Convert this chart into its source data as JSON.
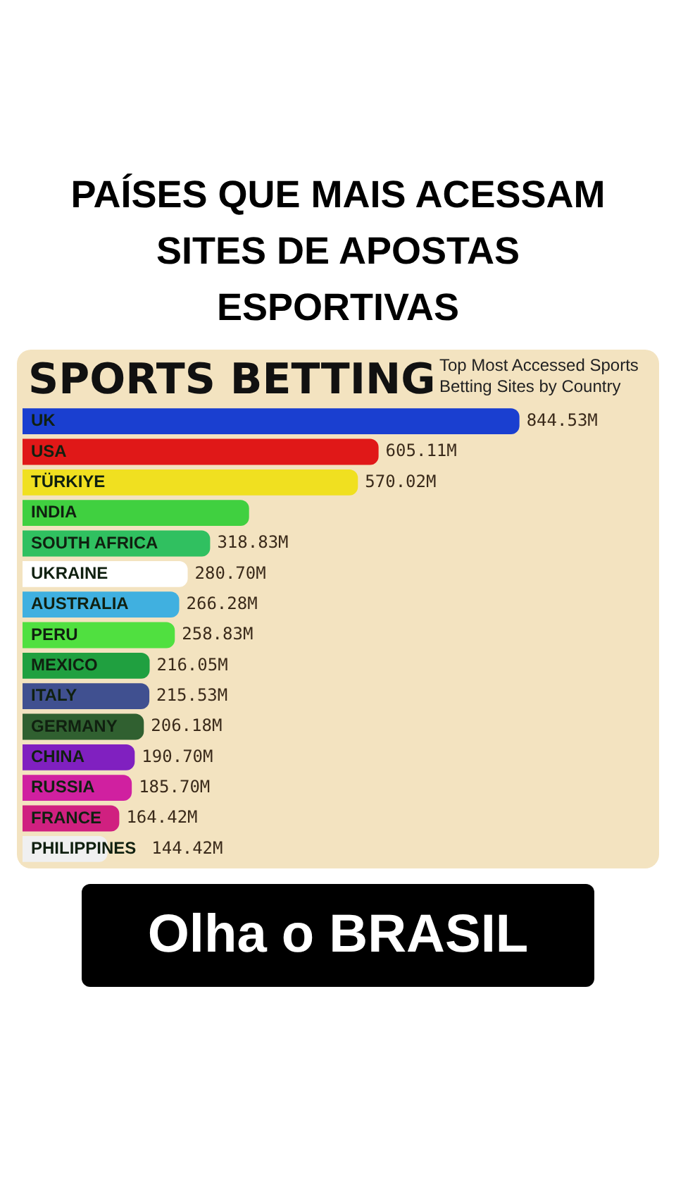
{
  "chart_data": {
    "type": "bar",
    "orientation": "horizontal",
    "title": "SPORTS BETTING",
    "subtitle": "Top Most Accessed Sports Betting Sites by Country",
    "categories": [
      "UK",
      "USA",
      "TÜRKIYE",
      "INDIA",
      "SOUTH AFRICA",
      "UKRAINE",
      "AUSTRALIA",
      "PERU",
      "MEXICO",
      "ITALY",
      "GERMANY",
      "CHINA",
      "RUSSIA",
      "FRANCE",
      "PHILIPPINES"
    ],
    "values": [
      844.53,
      605.11,
      570.02,
      385,
      318.83,
      280.7,
      266.28,
      258.83,
      216.05,
      215.53,
      206.18,
      190.7,
      185.7,
      164.42,
      144.42
    ],
    "value_labels": [
      "844.53M",
      "605.11M",
      "570.02M",
      null,
      "318.83M",
      "280.70M",
      "266.28M",
      "258.83M",
      "216.05M",
      "215.53M",
      "206.18M",
      "190.70M",
      "185.70M",
      "164.42M",
      "144.42M"
    ],
    "colors": [
      "#1a3fd0",
      "#e01818",
      "#f0e020",
      "#40d040",
      "#30c060",
      "#ffffff",
      "#40b0e0",
      "#50e040",
      "#20a040",
      "#405090",
      "#306030",
      "#8020c0",
      "#d020a0",
      "#d02080",
      "#f0f0f0"
    ],
    "tick_labels": false,
    "annotations": [
      "PAÍSES QUE MAIS ACESSAM SITES DE APOSTAS ESPORTIVAS",
      "Olha o BRASIL"
    ]
  }
}
